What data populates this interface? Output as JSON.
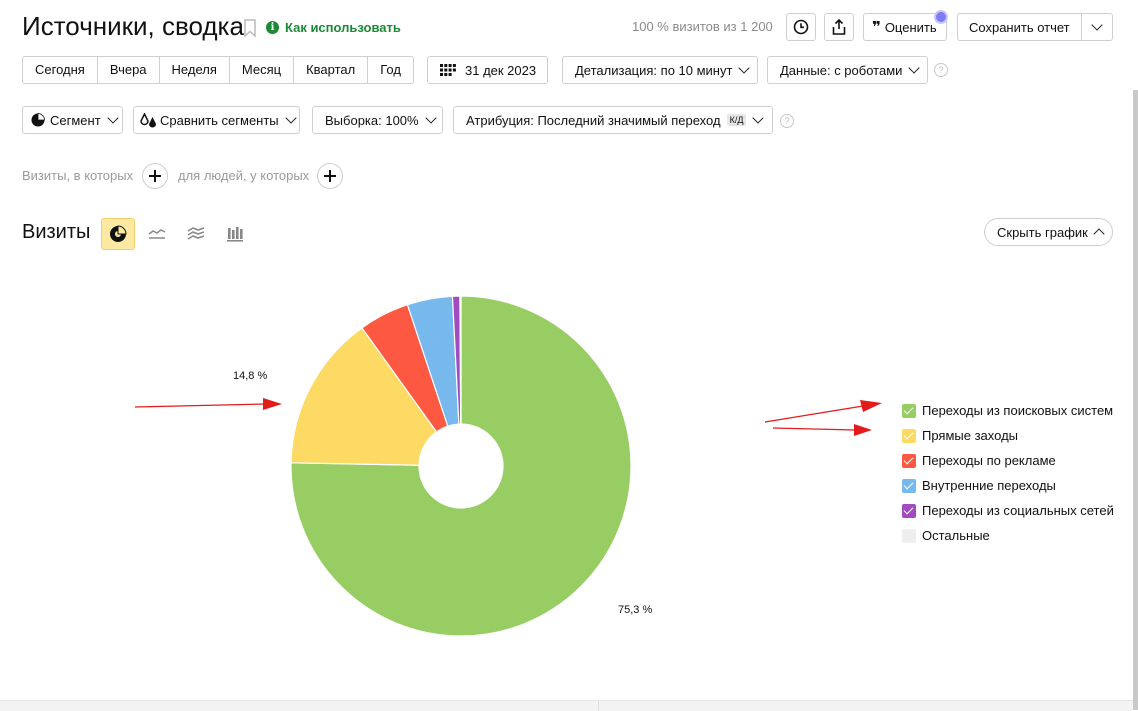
{
  "header": {
    "title": "Источники, сводка",
    "how_to_use": "Как использовать",
    "visits_note": "100 % визитов из 1 200",
    "rate_label": "Оценить",
    "save_report": "Сохранить отчет"
  },
  "periods": [
    "Сегодня",
    "Вчера",
    "Неделя",
    "Месяц",
    "Квартал",
    "Год"
  ],
  "date_label": "31 дек 2023",
  "detail_label": "Детализация: по 10 минут",
  "data_label": "Данные: с роботами",
  "help_glyph": "?",
  "segment_bar": {
    "segment": "Сегмент",
    "compare": "Сравнить сегменты",
    "sample": "Выборка: 100%",
    "attribution": "Атрибуция: Последний значимый переход",
    "attribution_badge": "К/Д"
  },
  "filters": {
    "visits_where": "Визиты, в которых",
    "people_where": "для людей, у которых"
  },
  "chart_section": {
    "title": "Визиты",
    "hide_chart": "Скрыть график",
    "chart_types": [
      "pie-chart-icon",
      "line-chart-icon",
      "area-chart-icon",
      "bar-chart-icon"
    ]
  },
  "chart_data": {
    "type": "pie",
    "donut": true,
    "series": [
      {
        "name": "Переходы из поисковых систем",
        "value": 75.3,
        "color": "#97cd62"
      },
      {
        "name": "Прямые заходы",
        "value": 14.8,
        "color": "#fcda64"
      },
      {
        "name": "Переходы по рекламе",
        "value": 4.8,
        "color": "#fd5841"
      },
      {
        "name": "Внутренние переходы",
        "value": 4.3,
        "color": "#77b8ed"
      },
      {
        "name": "Переходы из социальных сетей",
        "value": 0.7,
        "color": "#a24bc1"
      },
      {
        "name": "Остальные",
        "value": 0.1,
        "color": "#e2e2e2"
      }
    ],
    "labels": [
      {
        "series": "Переходы из поисковых систем",
        "text": "75,3 %"
      },
      {
        "series": "Прямые заходы",
        "text": "14,8 %"
      }
    ],
    "legend_position": "right"
  }
}
